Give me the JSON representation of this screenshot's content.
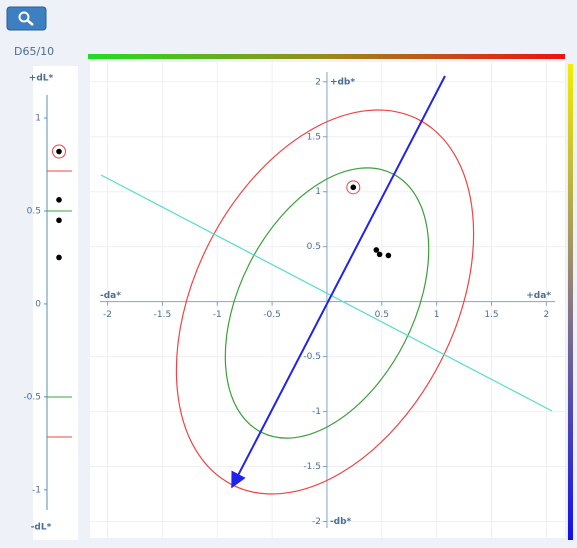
{
  "header": {
    "illuminant": "D65/10"
  },
  "chart_data": [
    {
      "type": "strip",
      "axis_labels": [
        "-dL*",
        "+dL*"
      ],
      "values": [
        0.82,
        0.56,
        0.45,
        0.25
      ],
      "ylim": [
        -1.27,
        1.28
      ],
      "yticks": [
        -1,
        -0.5,
        0,
        0.5,
        1
      ],
      "color": "#000000"
    },
    {
      "type": "scatter",
      "x_axis_labels": [
        "-da*",
        "+da*"
      ],
      "y_axis_labels": [
        "-db*",
        "+db*"
      ],
      "x": [
        0.24,
        0.45,
        0.48,
        0.56
      ],
      "values": [
        1.04,
        0.47,
        0.43,
        0.42
      ],
      "xlim": [
        -2.16,
        2.17
      ],
      "ylim": [
        -2.15,
        2.18
      ],
      "xticks": [
        -2,
        -1.5,
        -1,
        -0.5,
        0.5,
        1,
        1.5,
        2
      ],
      "yticks": [
        -2,
        -1.5,
        -1,
        -0.5,
        0.5,
        1,
        1.5,
        2
      ],
      "grid": true,
      "color": "#000000"
    }
  ]
}
